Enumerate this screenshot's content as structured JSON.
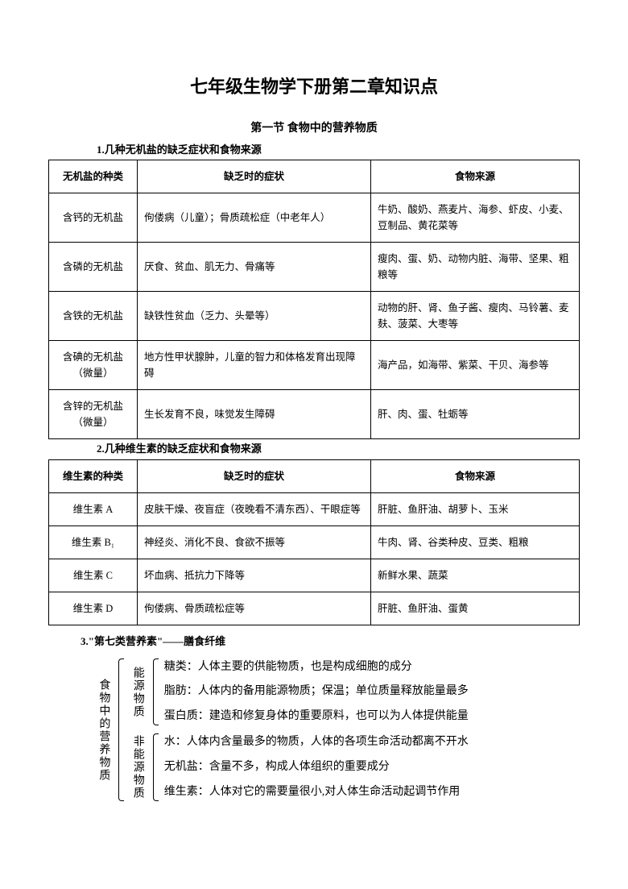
{
  "doc": {
    "title": "七年级生物学下册第二章知识点",
    "section1_title": "第一节  食物中的营养物质",
    "sub1": "1.几种无机盐的缺乏症状和食物来源",
    "sub2": "2.几种维生素的缺乏症状和食物来源",
    "sub3": "3.\"第七类营养素\"——膳食纤维"
  },
  "table1": {
    "headers": [
      "无机盐的种类",
      "缺乏时的症状",
      "食物来源"
    ],
    "rows": [
      [
        "含钙的无机盐",
        "佝偻病（儿童）；骨质疏松症（中老年人）",
        "牛奶、酸奶、燕麦片、海参、虾皮、小麦、豆制品、黄花菜等"
      ],
      [
        "含磷的无机盐",
        "厌食、贫血、肌无力、骨痛等",
        "瘦肉、蛋、奶、动物内脏、海带、坚果、粗粮等"
      ],
      [
        "含铁的无机盐",
        "缺铁性贫血（乏力、头晕等）",
        "动物的肝、肾、鱼子酱、瘦肉、马铃薯、麦麸、菠菜、大枣等"
      ],
      [
        "含碘的无机盐（微量）",
        "地方性甲状腺肿，儿童的智力和体格发育出现障碍",
        "海产品，如海带、紫菜、干贝、海参等"
      ],
      [
        "含锌的无机盐（微量）",
        "生长发育不良，味觉发生障碍",
        "肝、肉、蛋、牡蛎等"
      ]
    ]
  },
  "table2": {
    "headers": [
      "维生素的种类",
      "缺乏时的症状",
      "食物来源"
    ],
    "rows": [
      [
        "维生素 A",
        "皮肤干燥、夜盲症（夜晚看不清东西）、干眼症等",
        "肝脏、鱼肝油、胡萝卜、玉米"
      ],
      [
        "维生素 B₁",
        "神经炎、消化不良、食欲不振等",
        "牛肉、肾、谷类种皮、豆类、粗粮"
      ],
      [
        "维生素 C",
        "坏血病、抵抗力下降等",
        "新鲜水果、蔬菜"
      ],
      [
        "维生素 D",
        "佝偻病、骨质疏松症等",
        "肝脏、鱼肝油、蛋黄"
      ]
    ]
  },
  "hierarchy": {
    "root": "食物中的营养物质",
    "groups": [
      {
        "label": "能源物质",
        "items": [
          {
            "name": "糖类：",
            "desc": "人体主要的供能物质，也是构成细胞的成分"
          },
          {
            "name": "脂肪：",
            "desc": "人体内的备用能源物质；保温；单位质量释放能量最多"
          },
          {
            "name": "蛋白质：",
            "desc": "建造和修复身体的重要原料，也可以为人体提供能量"
          }
        ]
      },
      {
        "label": "非能源物质",
        "items": [
          {
            "name": "水：",
            "desc": "人体内含量最多的物质，人体的各项生命活动都离不开水"
          },
          {
            "name": "无机盐：",
            "desc": "含量不多，构成人体组织的重要成分"
          },
          {
            "name": "维生素：",
            "desc": "人体对它的需要量很小,对人体生命活动起调节作用"
          }
        ]
      }
    ]
  }
}
